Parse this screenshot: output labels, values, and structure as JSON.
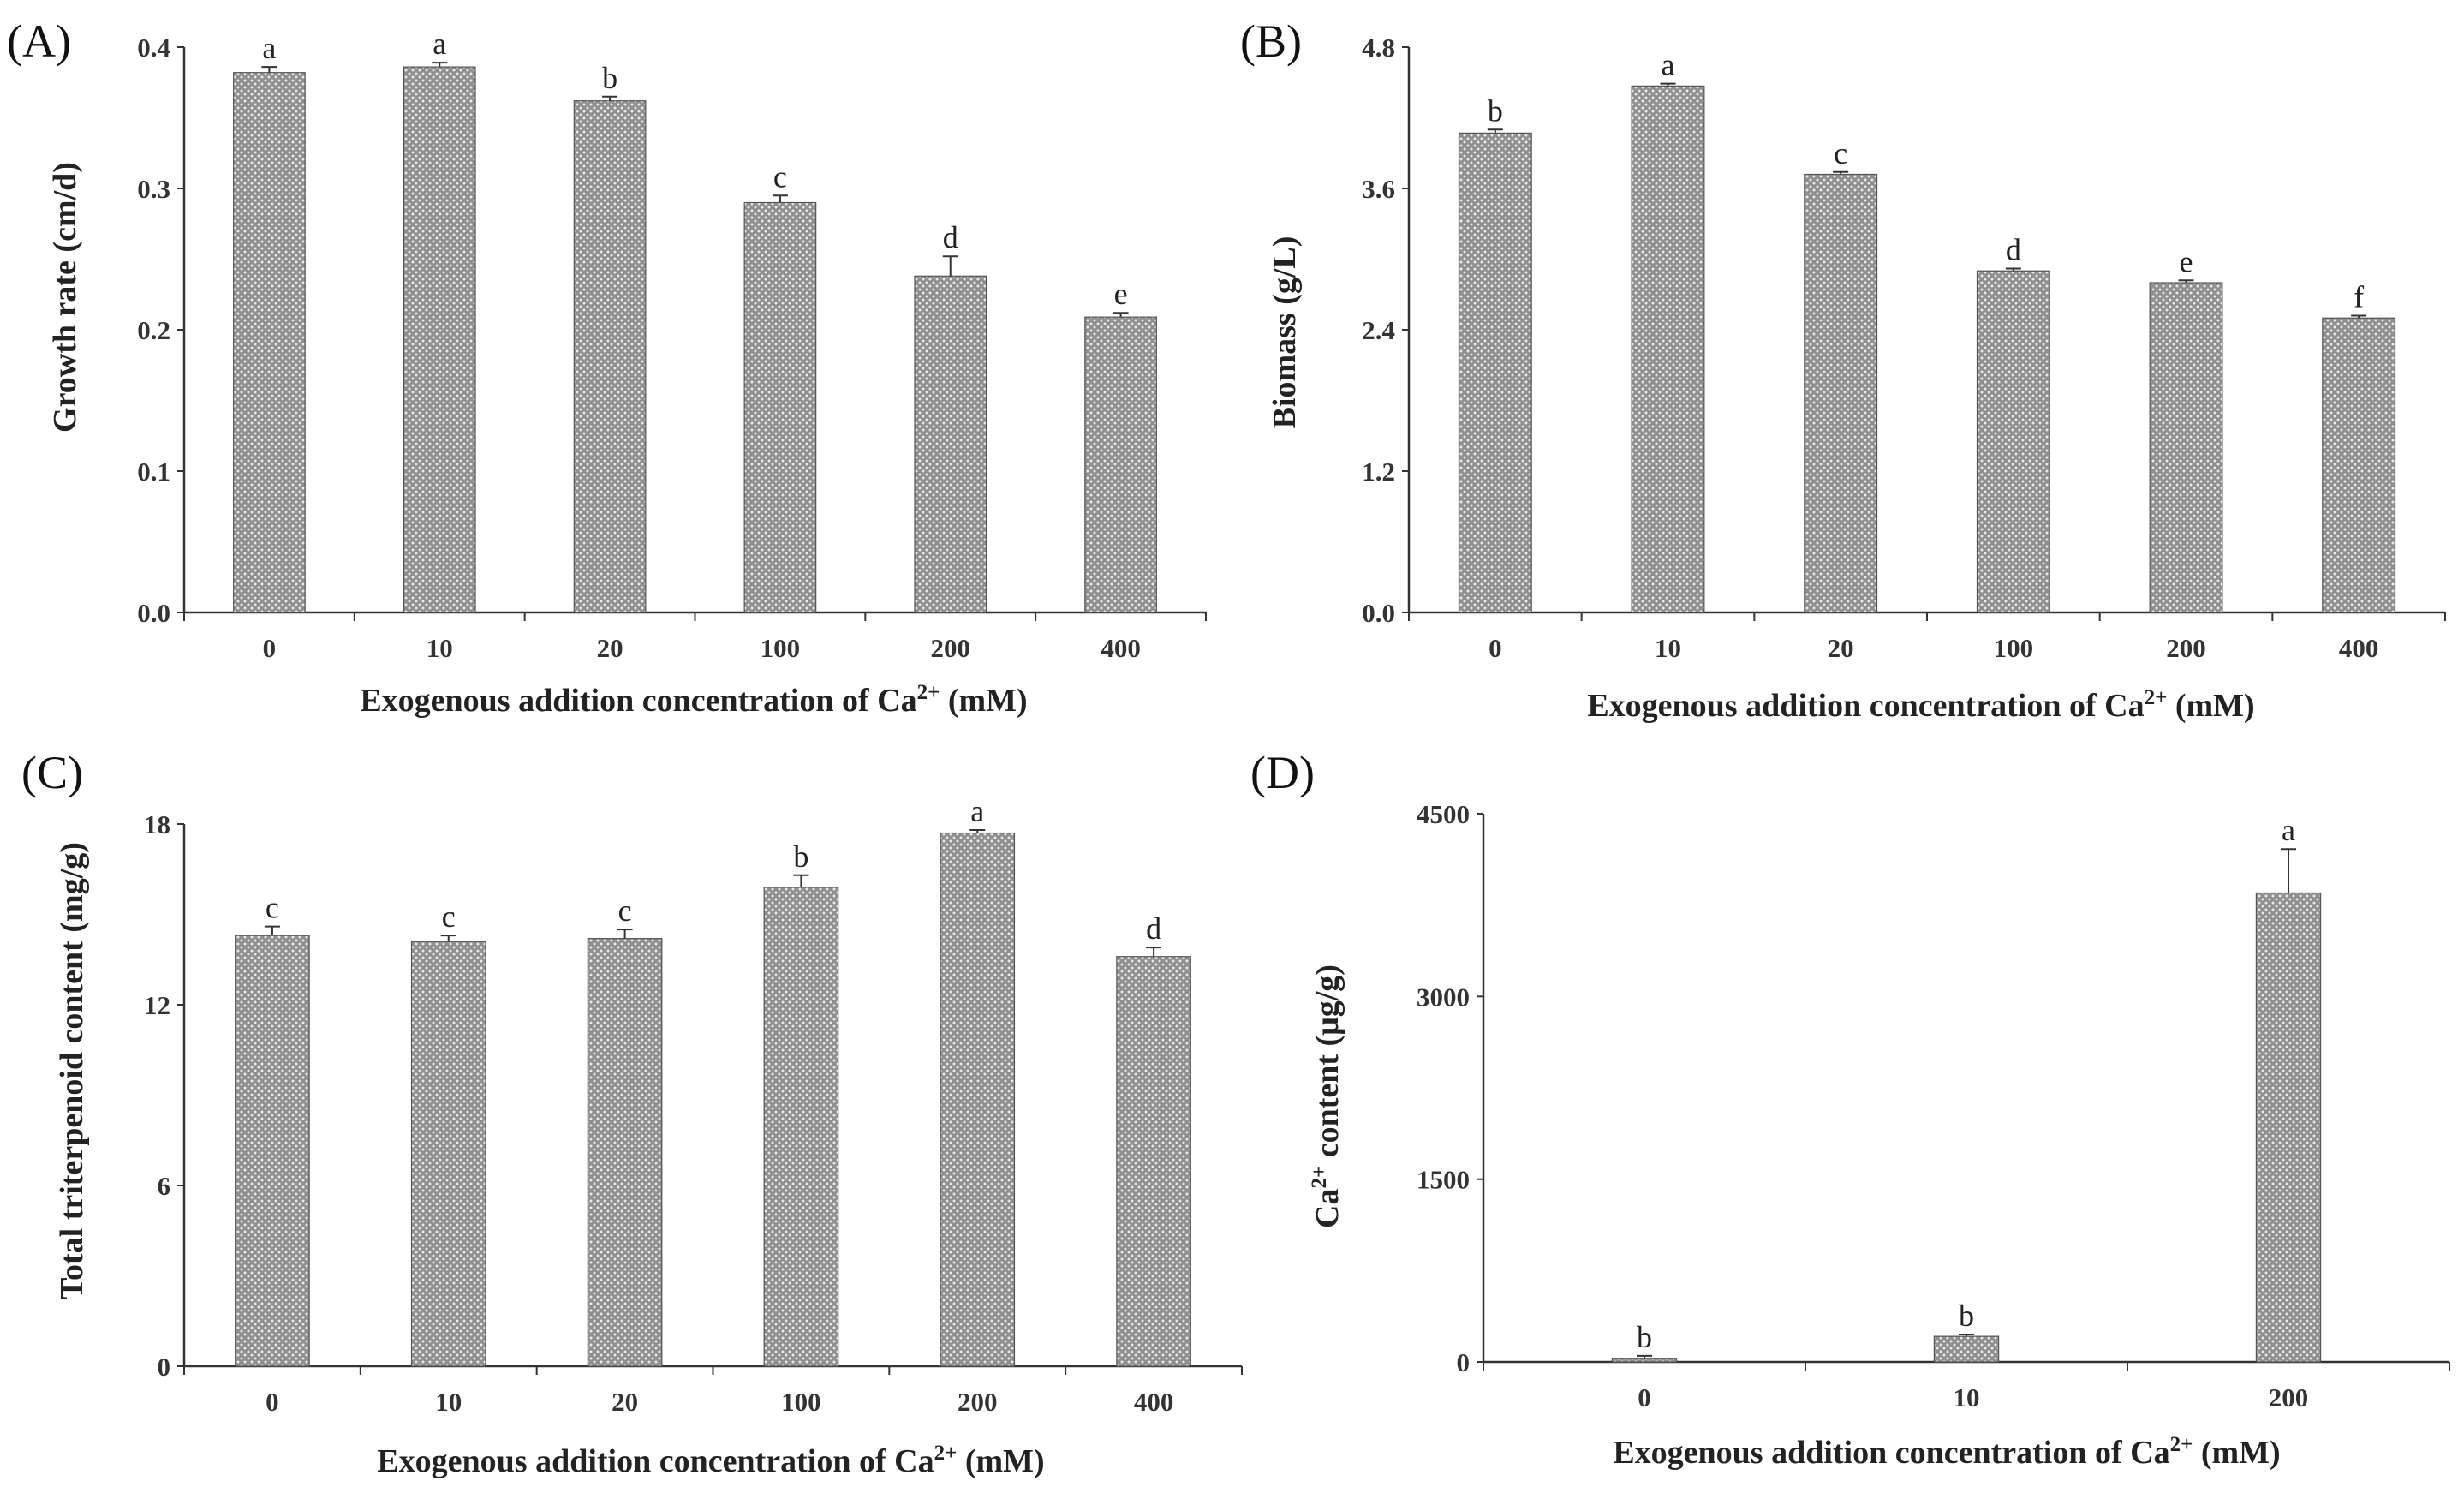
{
  "colors": {
    "bar": "#8f8f8f",
    "bar_dot": "#e8e8e8",
    "axis": "#333333"
  },
  "chart_data": [
    {
      "panel": "(A)",
      "type": "bar",
      "categories": [
        "0",
        "10",
        "20",
        "100",
        "200",
        "400"
      ],
      "values": [
        0.382,
        0.386,
        0.362,
        0.29,
        0.238,
        0.209
      ],
      "errors": [
        0.004,
        0.003,
        0.003,
        0.005,
        0.014,
        0.003
      ],
      "letters": [
        "a",
        "a",
        "b",
        "c",
        "d",
        "e"
      ],
      "ylim": [
        0,
        0.4
      ],
      "yticks": [
        0,
        0.1,
        0.2,
        0.3,
        0.4
      ],
      "ytick_labels": [
        "0.0",
        "0.1",
        "0.2",
        "0.3",
        "0.4"
      ],
      "ylabel": "Growth rate (cm/d)",
      "xlabel_main": "Exogenous addition concentration of Ca",
      "xlabel_sup": "2+",
      "xlabel_tail": " (mM)"
    },
    {
      "panel": "(B)",
      "type": "bar",
      "categories": [
        "0",
        "10",
        "20",
        "100",
        "200",
        "400"
      ],
      "values": [
        4.07,
        4.47,
        3.72,
        2.9,
        2.8,
        2.5
      ],
      "errors": [
        0.03,
        0.02,
        0.02,
        0.02,
        0.02,
        0.02
      ],
      "letters": [
        "b",
        "a",
        "c",
        "d",
        "e",
        "f"
      ],
      "ylim": [
        0,
        4.8
      ],
      "yticks": [
        0,
        1.2,
        2.4,
        3.6,
        4.8
      ],
      "ytick_labels": [
        "0.0",
        "1.2",
        "2.4",
        "3.6",
        "4.8"
      ],
      "ylabel": "Biomass (g/L)",
      "xlabel_main": "Exogenous addition concentration of Ca",
      "xlabel_sup": "2+",
      "xlabel_tail": " (mM)"
    },
    {
      "panel": "(C)",
      "type": "bar",
      "categories": [
        "0",
        "10",
        "20",
        "100",
        "200",
        "400"
      ],
      "values": [
        14.3,
        14.1,
        14.2,
        15.9,
        17.7,
        13.6
      ],
      "errors": [
        0.3,
        0.2,
        0.3,
        0.4,
        0.1,
        0.3
      ],
      "letters": [
        "c",
        "c",
        "c",
        "b",
        "a",
        "d"
      ],
      "ylim": [
        0,
        18
      ],
      "yticks": [
        0,
        6,
        12,
        18
      ],
      "ytick_labels": [
        "0",
        "6",
        "12",
        "18"
      ],
      "ylabel": "Total triterpenoid content (mg/g)",
      "xlabel_main": "Exogenous addition concentration of Ca",
      "xlabel_sup": "2+",
      "xlabel_tail": " (mM)"
    },
    {
      "panel": "(D)",
      "type": "bar",
      "categories": [
        "0",
        "10",
        "200"
      ],
      "values": [
        30,
        210,
        3850
      ],
      "errors": [
        20,
        15,
        360
      ],
      "letters": [
        "b",
        "b",
        "a"
      ],
      "ylim": [
        0,
        4500
      ],
      "yticks": [
        0,
        1500,
        3000,
        4500
      ],
      "ytick_labels": [
        "0",
        "1500",
        "3000",
        "4500"
      ],
      "ylabel_main": "Ca",
      "ylabel_sup": "2+",
      "ylabel_tail": " content (μg/g)",
      "xlabel_main": "Exogenous addition concentration of Ca",
      "xlabel_sup": "2+",
      "xlabel_tail": " (mM)"
    }
  ]
}
